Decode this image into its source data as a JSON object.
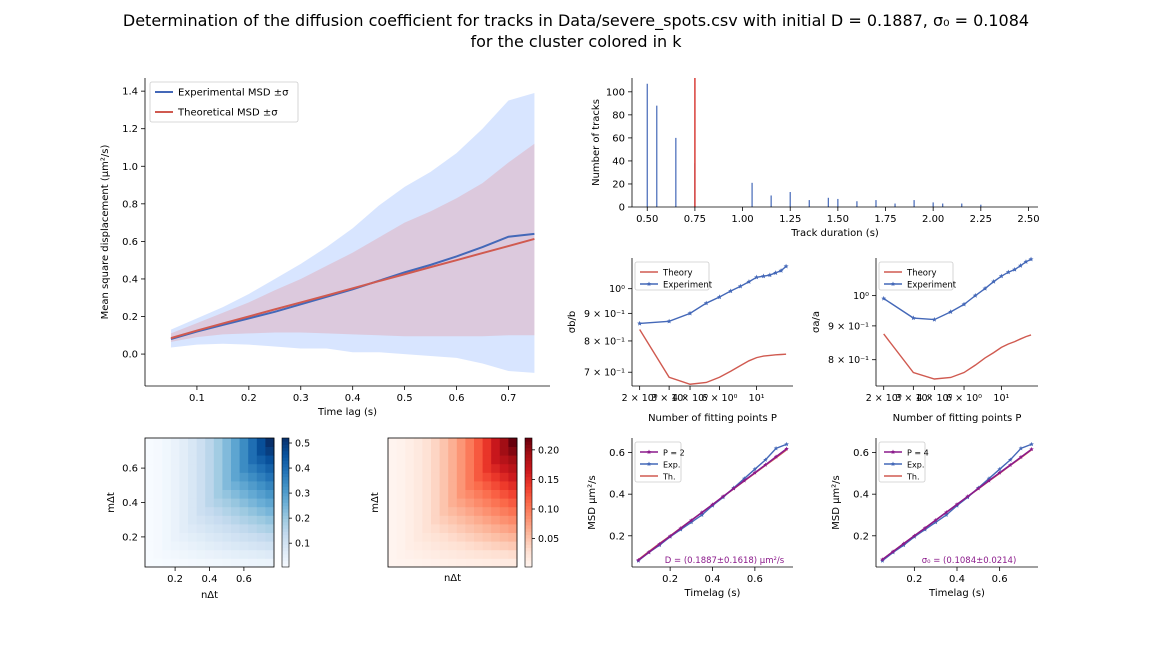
{
  "figure": {
    "title_line1": "Determination of the diffusion coefficient for tracks in Data/severe_spots.csv with initial D = 0.1887, σ₀ = 0.1084",
    "title_line2": "for the cluster colored in k",
    "colors": {
      "experiment": "#4468b8",
      "theory": "#d05a50",
      "fit": "#8b1a8b",
      "hist_red": "#d9403a"
    }
  },
  "chart_data": [
    {
      "id": "msd_main",
      "type": "line",
      "xlabel": "Time lag (s)",
      "ylabel": "Mean square displacement (μm²/s)",
      "xlim": [
        0.0,
        0.78
      ],
      "ylim": [
        -0.17,
        1.47
      ],
      "xticks": [
        "0.1",
        "0.2",
        "0.3",
        "0.4",
        "0.5",
        "0.6",
        "0.7"
      ],
      "yticks": [
        "0.0",
        "0.2",
        "0.4",
        "0.6",
        "0.8",
        "1.0",
        "1.2",
        "1.4"
      ],
      "legend": [
        "Experimental MSD ±σ",
        "Theoretical MSD ±σ"
      ],
      "x": [
        0.05,
        0.1,
        0.15,
        0.2,
        0.25,
        0.3,
        0.35,
        0.4,
        0.45,
        0.5,
        0.55,
        0.6,
        0.65,
        0.7,
        0.75
      ],
      "series": [
        {
          "name": "Experimental MSD ±σ",
          "values": [
            0.08,
            0.12,
            0.155,
            0.19,
            0.225,
            0.265,
            0.305,
            0.345,
            0.39,
            0.435,
            0.475,
            0.52,
            0.57,
            0.625,
            0.64
          ],
          "upper": [
            0.13,
            0.19,
            0.25,
            0.32,
            0.4,
            0.48,
            0.57,
            0.67,
            0.79,
            0.89,
            0.97,
            1.07,
            1.2,
            1.35,
            1.39
          ],
          "lower": [
            0.035,
            0.05,
            0.055,
            0.05,
            0.04,
            0.03,
            0.03,
            0.01,
            0.01,
            0.0,
            -0.01,
            -0.02,
            -0.05,
            -0.09,
            -0.1
          ]
        },
        {
          "name": "Theoretical MSD ±σ",
          "values": [
            0.085,
            0.125,
            0.163,
            0.2,
            0.238,
            0.275,
            0.312,
            0.35,
            0.388,
            0.425,
            0.463,
            0.5,
            0.538,
            0.575,
            0.613
          ],
          "upper": [
            0.11,
            0.165,
            0.22,
            0.275,
            0.34,
            0.4,
            0.47,
            0.54,
            0.62,
            0.7,
            0.76,
            0.83,
            0.91,
            1.02,
            1.12
          ],
          "lower": [
            0.065,
            0.09,
            0.105,
            0.11,
            0.115,
            0.115,
            0.11,
            0.105,
            0.1,
            0.095,
            0.095,
            0.095,
            0.095,
            0.1,
            0.1
          ]
        }
      ]
    },
    {
      "id": "hist",
      "type": "bar",
      "xlabel": "Track duration (s)",
      "ylabel": "Number of tracks",
      "xlim": [
        0.42,
        2.55
      ],
      "ylim": [
        0,
        112
      ],
      "xticks": [
        "0.50",
        "0.75",
        "1.00",
        "1.25",
        "1.50",
        "1.75",
        "2.00",
        "2.25",
        "2.50"
      ],
      "yticks": [
        "0",
        "20",
        "40",
        "60",
        "80",
        "100"
      ],
      "bars_x": [
        0.5,
        0.55,
        0.65,
        0.75,
        1.05,
        1.15,
        1.25,
        1.35,
        1.45,
        1.5,
        1.6,
        1.7,
        1.8,
        1.9,
        2.0,
        2.05,
        2.15,
        2.25
      ],
      "bars_y": [
        107,
        88,
        60,
        38,
        21,
        10,
        13,
        6,
        8,
        7,
        5,
        6,
        3,
        6,
        4,
        3,
        3,
        2
      ],
      "marker_x": 0.75
    },
    {
      "id": "sigma_b",
      "type": "line",
      "xlabel": "Number of fitting points P",
      "ylabel": "σb/b",
      "log_x": true,
      "log_y": true,
      "xlim": [
        1.8,
        16.5
      ],
      "ylim": [
        0.66,
        1.14
      ],
      "xticks": [
        "2 × 10⁰",
        "3 × 10⁰",
        "4 × 10⁰",
        "6 × 10⁰",
        "10¹"
      ],
      "xtick_vals": [
        2,
        3,
        4,
        6,
        10
      ],
      "yticks": [
        "7 × 10⁻¹",
        "8 × 10⁻¹",
        "9 × 10⁻¹",
        "10⁰"
      ],
      "ytick_vals": [
        0.7,
        0.8,
        0.9,
        1.0
      ],
      "legend": [
        "Theory",
        "Experiment"
      ],
      "x": [
        2,
        3,
        4,
        5,
        6,
        7,
        8,
        9,
        10,
        11,
        12,
        13,
        14,
        15
      ],
      "series": [
        {
          "name": "Theory",
          "values": [
            0.84,
            0.685,
            0.665,
            0.67,
            0.685,
            0.703,
            0.72,
            0.735,
            0.745,
            0.75,
            0.752,
            0.754,
            0.755,
            0.756
          ]
        },
        {
          "name": "Experiment",
          "values": [
            0.862,
            0.87,
            0.9,
            0.94,
            0.965,
            0.99,
            1.01,
            1.03,
            1.05,
            1.055,
            1.06,
            1.07,
            1.08,
            1.1
          ]
        }
      ]
    },
    {
      "id": "sigma_a",
      "type": "line",
      "xlabel": "Number of fitting points P",
      "ylabel": "σa/a",
      "log_x": true,
      "log_y": true,
      "xlim": [
        1.8,
        16.5
      ],
      "ylim": [
        0.73,
        1.14
      ],
      "xticks": [
        "2 × 10⁰",
        "3 × 10⁰",
        "4 × 10⁰",
        "6 × 10⁰",
        "10¹"
      ],
      "xtick_vals": [
        2,
        3,
        4,
        6,
        10
      ],
      "yticks": [
        "8 × 10⁻¹",
        "9 × 10⁻¹",
        "10⁰"
      ],
      "ytick_vals": [
        0.8,
        0.9,
        1.0
      ],
      "legend": [
        "Theory",
        "Experiment"
      ],
      "x": [
        2,
        3,
        4,
        5,
        6,
        7,
        8,
        9,
        10,
        11,
        12,
        13,
        14,
        15
      ],
      "series": [
        {
          "name": "Theory",
          "values": [
            0.875,
            0.765,
            0.748,
            0.752,
            0.765,
            0.785,
            0.805,
            0.82,
            0.835,
            0.845,
            0.852,
            0.86,
            0.867,
            0.872
          ]
        },
        {
          "name": "Experiment",
          "values": [
            0.99,
            0.925,
            0.92,
            0.945,
            0.97,
            1.0,
            1.025,
            1.05,
            1.07,
            1.085,
            1.095,
            1.11,
            1.125,
            1.135
          ]
        }
      ]
    },
    {
      "id": "heat_blue",
      "type": "heatmap",
      "xlabel": "nΔt",
      "ylabel": "mΔt",
      "xlim": [
        0.025,
        0.775
      ],
      "ylim": [
        0.025,
        0.775
      ],
      "xticks": [
        "0.2",
        "0.4",
        "0.6"
      ],
      "yticks": [
        "0.2",
        "0.4",
        "0.6"
      ],
      "grid_n": 15,
      "cbar_min": 0.005,
      "cbar_max": 0.52,
      "cbar_ticks": [
        "0.1",
        "0.2",
        "0.3",
        "0.4",
        "0.5"
      ],
      "cbar_tick_vals": [
        0.1,
        0.2,
        0.3,
        0.4,
        0.5
      ],
      "colormap": "Blues"
    },
    {
      "id": "heat_red",
      "type": "heatmap",
      "xlabel": "nΔt",
      "ylabel": "mΔt",
      "xlim": [
        0.025,
        0.775
      ],
      "ylim": [
        0.025,
        0.775
      ],
      "xticks": [],
      "yticks": [],
      "grid_n": 15,
      "cbar_min": 0.002,
      "cbar_max": 0.22,
      "cbar_ticks": [
        "0.05",
        "0.10",
        "0.15",
        "0.20"
      ],
      "cbar_tick_vals": [
        0.05,
        0.1,
        0.15,
        0.2
      ],
      "colormap": "Reds"
    },
    {
      "id": "fit_p2",
      "type": "line",
      "xlabel": "Timelag (s)",
      "ylabel": "MSD μm²/s",
      "xlim": [
        0.02,
        0.78
      ],
      "ylim": [
        0.05,
        0.67
      ],
      "xticks": [
        "0.2",
        "0.4",
        "0.6"
      ],
      "xtick_vals": [
        0.2,
        0.4,
        0.6
      ],
      "yticks": [
        "0.2",
        "0.4",
        "0.6"
      ],
      "ytick_vals": [
        0.2,
        0.4,
        0.6
      ],
      "legend": [
        "P = 2",
        "Exp.",
        "Th."
      ],
      "annotation": "D = (0.1887±0.1618) μm²/s",
      "x": [
        0.05,
        0.1,
        0.15,
        0.2,
        0.25,
        0.3,
        0.35,
        0.4,
        0.45,
        0.5,
        0.55,
        0.6,
        0.65,
        0.7,
        0.75
      ],
      "series": [
        {
          "name": "P = 2",
          "values": [
            0.083,
            0.121,
            0.16,
            0.198,
            0.236,
            0.274,
            0.312,
            0.35,
            0.389,
            0.427,
            0.465,
            0.503,
            0.541,
            0.58,
            0.618
          ]
        },
        {
          "name": "Exp.",
          "values": [
            0.08,
            0.12,
            0.155,
            0.195,
            0.23,
            0.265,
            0.3,
            0.345,
            0.385,
            0.43,
            0.475,
            0.52,
            0.565,
            0.62,
            0.64
          ]
        },
        {
          "name": "Th.",
          "values": [
            0.085,
            0.125,
            0.163,
            0.2,
            0.238,
            0.275,
            0.312,
            0.35,
            0.388,
            0.425,
            0.463,
            0.5,
            0.538,
            0.575,
            0.613
          ]
        }
      ]
    },
    {
      "id": "fit_p4",
      "type": "line",
      "xlabel": "Timelag (s)",
      "ylabel": "MSD μm²/s",
      "xlim": [
        0.02,
        0.78
      ],
      "ylim": [
        0.05,
        0.67
      ],
      "xticks": [
        "0.2",
        "0.4",
        "0.6"
      ],
      "xtick_vals": [
        0.2,
        0.4,
        0.6
      ],
      "yticks": [
        "0.2",
        "0.4",
        "0.6"
      ],
      "ytick_vals": [
        0.2,
        0.4,
        0.6
      ],
      "legend": [
        "P = 4",
        "Exp.",
        "Th."
      ],
      "annotation": "σ₀ = (0.1084±0.0214)",
      "x": [
        0.05,
        0.1,
        0.15,
        0.2,
        0.25,
        0.3,
        0.35,
        0.4,
        0.45,
        0.5,
        0.55,
        0.6,
        0.65,
        0.7,
        0.75
      ],
      "series": [
        {
          "name": "P = 4",
          "values": [
            0.086,
            0.124,
            0.162,
            0.2,
            0.237,
            0.275,
            0.313,
            0.351,
            0.389,
            0.427,
            0.465,
            0.503,
            0.54,
            0.578,
            0.616
          ]
        },
        {
          "name": "Exp.",
          "values": [
            0.08,
            0.12,
            0.155,
            0.195,
            0.23,
            0.265,
            0.3,
            0.345,
            0.385,
            0.43,
            0.475,
            0.52,
            0.565,
            0.62,
            0.64
          ]
        },
        {
          "name": "Th.",
          "values": [
            0.085,
            0.125,
            0.163,
            0.2,
            0.238,
            0.275,
            0.312,
            0.35,
            0.388,
            0.425,
            0.463,
            0.5,
            0.538,
            0.575,
            0.613
          ]
        }
      ]
    }
  ]
}
